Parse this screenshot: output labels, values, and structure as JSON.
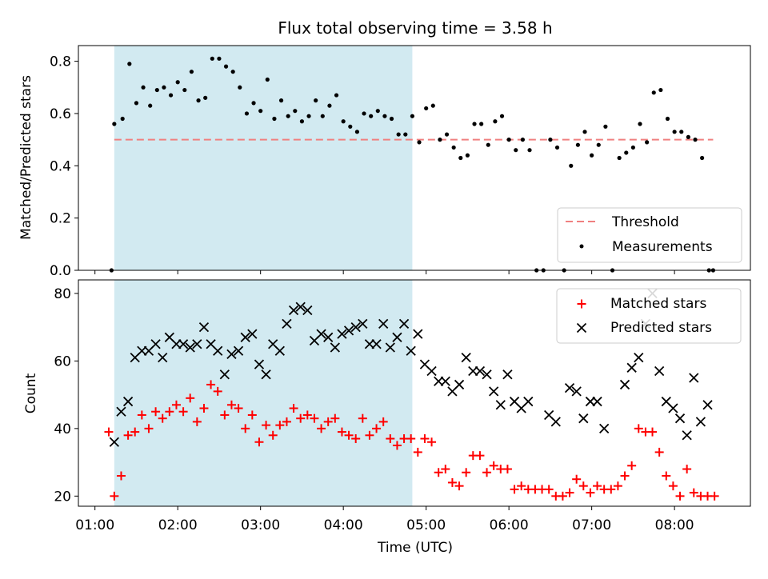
{
  "title": "Flux total observing time = 3.58 h",
  "colors": {
    "shade": "#add8e6",
    "threshold": "#f08080",
    "matched": "#ff0000",
    "predicted": "#000000",
    "measurement": "#000000"
  },
  "x_ticks": [
    "01:00",
    "02:00",
    "03:00",
    "04:00",
    "05:00",
    "06:00",
    "07:00",
    "08:00"
  ],
  "x_label": "Time (UTC)",
  "chart_data": [
    {
      "type": "scatter",
      "ylabel": "Matched/Predicted stars",
      "xlim": [
        "00:48",
        "08:55"
      ],
      "ylim": [
        0,
        0.86
      ],
      "yticks": [
        "0.0",
        "0.2",
        "0.4",
        "0.6",
        "0.8"
      ],
      "shaded_span": [
        "01:14",
        "04:50"
      ],
      "threshold": 0.5,
      "legend": {
        "position": "lower-right",
        "entries": [
          "Threshold",
          "Measurements"
        ]
      },
      "series": [
        {
          "name": "Measurements",
          "points": [
            [
              "01:12",
              0.0
            ],
            [
              "01:14",
              0.56
            ],
            [
              "01:20",
              0.58
            ],
            [
              "01:25",
              0.79
            ],
            [
              "01:30",
              0.64
            ],
            [
              "01:35",
              0.7
            ],
            [
              "01:40",
              0.63
            ],
            [
              "01:45",
              0.69
            ],
            [
              "01:50",
              0.7
            ],
            [
              "01:55",
              0.67
            ],
            [
              "02:00",
              0.72
            ],
            [
              "02:05",
              0.69
            ],
            [
              "02:10",
              0.76
            ],
            [
              "02:15",
              0.65
            ],
            [
              "02:20",
              0.66
            ],
            [
              "02:25",
              0.81
            ],
            [
              "02:30",
              0.81
            ],
            [
              "02:35",
              0.78
            ],
            [
              "02:40",
              0.76
            ],
            [
              "02:45",
              0.7
            ],
            [
              "02:50",
              0.6
            ],
            [
              "02:55",
              0.64
            ],
            [
              "03:00",
              0.61
            ],
            [
              "03:05",
              0.73
            ],
            [
              "03:10",
              0.58
            ],
            [
              "03:15",
              0.65
            ],
            [
              "03:20",
              0.59
            ],
            [
              "03:25",
              0.61
            ],
            [
              "03:30",
              0.57
            ],
            [
              "03:35",
              0.59
            ],
            [
              "03:40",
              0.65
            ],
            [
              "03:45",
              0.59
            ],
            [
              "03:50",
              0.63
            ],
            [
              "03:55",
              0.67
            ],
            [
              "04:00",
              0.57
            ],
            [
              "04:05",
              0.55
            ],
            [
              "04:10",
              0.53
            ],
            [
              "04:15",
              0.6
            ],
            [
              "04:20",
              0.59
            ],
            [
              "04:25",
              0.61
            ],
            [
              "04:30",
              0.59
            ],
            [
              "04:35",
              0.58
            ],
            [
              "04:40",
              0.52
            ],
            [
              "04:45",
              0.52
            ],
            [
              "04:50",
              0.59
            ],
            [
              "04:55",
              0.49
            ],
            [
              "05:00",
              0.62
            ],
            [
              "05:05",
              0.63
            ],
            [
              "05:10",
              0.5
            ],
            [
              "05:15",
              0.52
            ],
            [
              "05:20",
              0.47
            ],
            [
              "05:25",
              0.43
            ],
            [
              "05:30",
              0.44
            ],
            [
              "05:35",
              0.56
            ],
            [
              "05:40",
              0.56
            ],
            [
              "05:45",
              0.48
            ],
            [
              "05:50",
              0.57
            ],
            [
              "05:55",
              0.59
            ],
            [
              "06:00",
              0.5
            ],
            [
              "06:05",
              0.46
            ],
            [
              "06:10",
              0.5
            ],
            [
              "06:15",
              0.46
            ],
            [
              "06:20",
              0.0
            ],
            [
              "06:25",
              0.0
            ],
            [
              "06:30",
              0.5
            ],
            [
              "06:35",
              0.47
            ],
            [
              "06:40",
              0.0
            ],
            [
              "06:45",
              0.4
            ],
            [
              "06:50",
              0.48
            ],
            [
              "06:55",
              0.53
            ],
            [
              "07:00",
              0.44
            ],
            [
              "07:05",
              0.48
            ],
            [
              "07:10",
              0.55
            ],
            [
              "07:15",
              0.0
            ],
            [
              "07:20",
              0.43
            ],
            [
              "07:25",
              0.45
            ],
            [
              "07:30",
              0.47
            ],
            [
              "07:35",
              0.56
            ],
            [
              "07:40",
              0.49
            ],
            [
              "07:45",
              0.68
            ],
            [
              "07:50",
              0.69
            ],
            [
              "07:55",
              0.58
            ],
            [
              "08:00",
              0.53
            ],
            [
              "08:05",
              0.53
            ],
            [
              "08:10",
              0.51
            ],
            [
              "08:15",
              0.5
            ],
            [
              "08:20",
              0.43
            ],
            [
              "08:25",
              0.0
            ],
            [
              "08:28",
              0.0
            ]
          ]
        }
      ]
    },
    {
      "type": "scatter",
      "ylabel": "Count",
      "xlabel": "Time (UTC)",
      "xlim": [
        "00:48",
        "08:55"
      ],
      "ylim": [
        17,
        84
      ],
      "yticks": [
        "20",
        "40",
        "60",
        "80"
      ],
      "shaded_span": [
        "01:14",
        "04:50"
      ],
      "legend": {
        "position": "upper-right",
        "entries": [
          "Matched stars",
          "Predicted stars"
        ]
      },
      "series": [
        {
          "name": "Matched stars",
          "marker": "+",
          "points": [
            [
              "01:10",
              39
            ],
            [
              "01:14",
              20
            ],
            [
              "01:19",
              26
            ],
            [
              "01:24",
              38
            ],
            [
              "01:29",
              39
            ],
            [
              "01:34",
              44
            ],
            [
              "01:39",
              40
            ],
            [
              "01:44",
              45
            ],
            [
              "01:49",
              43
            ],
            [
              "01:54",
              45
            ],
            [
              "01:59",
              47
            ],
            [
              "02:04",
              45
            ],
            [
              "02:09",
              49
            ],
            [
              "02:14",
              42
            ],
            [
              "02:19",
              46
            ],
            [
              "02:24",
              53
            ],
            [
              "02:29",
              51
            ],
            [
              "02:34",
              44
            ],
            [
              "02:39",
              47
            ],
            [
              "02:44",
              46
            ],
            [
              "02:49",
              40
            ],
            [
              "02:54",
              44
            ],
            [
              "02:59",
              36
            ],
            [
              "03:04",
              41
            ],
            [
              "03:09",
              38
            ],
            [
              "03:14",
              41
            ],
            [
              "03:19",
              42
            ],
            [
              "03:24",
              46
            ],
            [
              "03:29",
              43
            ],
            [
              "03:34",
              44
            ],
            [
              "03:39",
              43
            ],
            [
              "03:44",
              40
            ],
            [
              "03:49",
              42
            ],
            [
              "03:54",
              43
            ],
            [
              "03:59",
              39
            ],
            [
              "04:04",
              38
            ],
            [
              "04:09",
              37
            ],
            [
              "04:14",
              43
            ],
            [
              "04:19",
              38
            ],
            [
              "04:24",
              40
            ],
            [
              "04:29",
              42
            ],
            [
              "04:34",
              37
            ],
            [
              "04:39",
              35
            ],
            [
              "04:44",
              37
            ],
            [
              "04:49",
              37
            ],
            [
              "04:54",
              33
            ],
            [
              "04:59",
              37
            ],
            [
              "05:04",
              36
            ],
            [
              "05:09",
              27
            ],
            [
              "05:14",
              28
            ],
            [
              "05:19",
              24
            ],
            [
              "05:24",
              23
            ],
            [
              "05:29",
              27
            ],
            [
              "05:34",
              32
            ],
            [
              "05:39",
              32
            ],
            [
              "05:44",
              27
            ],
            [
              "05:49",
              29
            ],
            [
              "05:54",
              28
            ],
            [
              "05:59",
              28
            ],
            [
              "06:04",
              22
            ],
            [
              "06:09",
              23
            ],
            [
              "06:14",
              22
            ],
            [
              "06:19",
              22
            ],
            [
              "06:24",
              22
            ],
            [
              "06:29",
              22
            ],
            [
              "06:34",
              20
            ],
            [
              "06:39",
              20
            ],
            [
              "06:44",
              21
            ],
            [
              "06:49",
              25
            ],
            [
              "06:54",
              23
            ],
            [
              "06:59",
              21
            ],
            [
              "07:04",
              23
            ],
            [
              "07:09",
              22
            ],
            [
              "07:14",
              22
            ],
            [
              "07:19",
              23
            ],
            [
              "07:24",
              26
            ],
            [
              "07:29",
              29
            ],
            [
              "07:34",
              40
            ],
            [
              "07:39",
              39
            ],
            [
              "07:44",
              39
            ],
            [
              "07:49",
              33
            ],
            [
              "07:54",
              26
            ],
            [
              "07:59",
              23
            ],
            [
              "08:04",
              20
            ],
            [
              "08:09",
              28
            ],
            [
              "08:14",
              21
            ],
            [
              "08:19",
              20
            ],
            [
              "08:24",
              20
            ],
            [
              "08:29",
              20
            ]
          ]
        },
        {
          "name": "Predicted stars",
          "marker": "x",
          "points": [
            [
              "01:14",
              36
            ],
            [
              "01:19",
              45
            ],
            [
              "01:24",
              48
            ],
            [
              "01:29",
              61
            ],
            [
              "01:34",
              63
            ],
            [
              "01:39",
              63
            ],
            [
              "01:44",
              65
            ],
            [
              "01:49",
              61
            ],
            [
              "01:54",
              67
            ],
            [
              "01:59",
              65
            ],
            [
              "02:04",
              65
            ],
            [
              "02:09",
              64
            ],
            [
              "02:14",
              65
            ],
            [
              "02:19",
              70
            ],
            [
              "02:24",
              65
            ],
            [
              "02:29",
              63
            ],
            [
              "02:34",
              56
            ],
            [
              "02:39",
              62
            ],
            [
              "02:44",
              63
            ],
            [
              "02:49",
              67
            ],
            [
              "02:54",
              68
            ],
            [
              "02:59",
              59
            ],
            [
              "03:04",
              56
            ],
            [
              "03:09",
              65
            ],
            [
              "03:14",
              63
            ],
            [
              "03:19",
              71
            ],
            [
              "03:24",
              75
            ],
            [
              "03:29",
              76
            ],
            [
              "03:34",
              75
            ],
            [
              "03:39",
              66
            ],
            [
              "03:44",
              68
            ],
            [
              "03:49",
              67
            ],
            [
              "03:54",
              64
            ],
            [
              "03:59",
              68
            ],
            [
              "04:04",
              69
            ],
            [
              "04:09",
              70
            ],
            [
              "04:14",
              71
            ],
            [
              "04:19",
              65
            ],
            [
              "04:24",
              65
            ],
            [
              "04:29",
              71
            ],
            [
              "04:34",
              64
            ],
            [
              "04:39",
              67
            ],
            [
              "04:44",
              71
            ],
            [
              "04:49",
              63
            ],
            [
              "04:54",
              68
            ],
            [
              "04:59",
              59
            ],
            [
              "05:04",
              57
            ],
            [
              "05:09",
              54
            ],
            [
              "05:14",
              54
            ],
            [
              "05:19",
              51
            ],
            [
              "05:24",
              53
            ],
            [
              "05:29",
              61
            ],
            [
              "05:34",
              57
            ],
            [
              "05:39",
              57
            ],
            [
              "05:44",
              56
            ],
            [
              "05:49",
              51
            ],
            [
              "05:54",
              47
            ],
            [
              "05:59",
              56
            ],
            [
              "06:04",
              48
            ],
            [
              "06:09",
              46
            ],
            [
              "06:14",
              48
            ],
            [
              "06:29",
              44
            ],
            [
              "06:34",
              42
            ],
            [
              "06:44",
              52
            ],
            [
              "06:49",
              51
            ],
            [
              "06:54",
              43
            ],
            [
              "06:59",
              48
            ],
            [
              "07:04",
              48
            ],
            [
              "07:09",
              40
            ],
            [
              "07:24",
              53
            ],
            [
              "07:29",
              58
            ],
            [
              "07:34",
              61
            ],
            [
              "07:39",
              71
            ],
            [
              "07:44",
              80
            ],
            [
              "07:49",
              57
            ],
            [
              "07:54",
              48
            ],
            [
              "07:59",
              46
            ],
            [
              "08:04",
              43
            ],
            [
              "08:09",
              38
            ],
            [
              "08:14",
              55
            ],
            [
              "08:19",
              42
            ],
            [
              "08:24",
              47
            ]
          ]
        }
      ]
    }
  ]
}
